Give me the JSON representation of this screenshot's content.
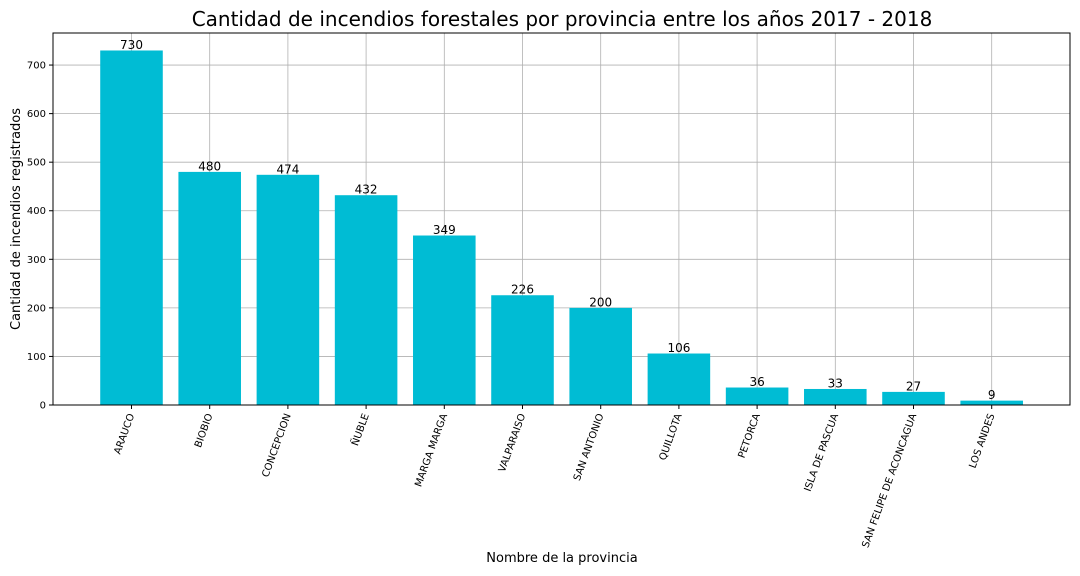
{
  "chart_data": {
    "type": "bar",
    "title": "Cantidad de incendios forestales por provincia entre los años 2017 - 2018",
    "xlabel": "Nombre de la provincia",
    "ylabel": "Cantidad de incendios registrados",
    "categories": [
      "ARAUCO",
      "BIOBIO",
      "CONCEPCION",
      "ÑUBLE",
      "MARGA MARGA",
      "VALPARAISO",
      "SAN ANTONIO",
      "QUILLOTA",
      "PETORCA",
      "ISLA DE PASCUA",
      "SAN FELIPE DE ACONCAGUA",
      "LOS ANDES"
    ],
    "values": [
      730,
      480,
      474,
      432,
      349,
      226,
      200,
      106,
      36,
      33,
      27,
      9
    ],
    "ylim": [
      0,
      766
    ],
    "yticks": [
      0,
      100,
      200,
      300,
      400,
      500,
      600,
      700
    ],
    "grid": true,
    "bar_color": "#00bcd4",
    "data_labels": true
  }
}
